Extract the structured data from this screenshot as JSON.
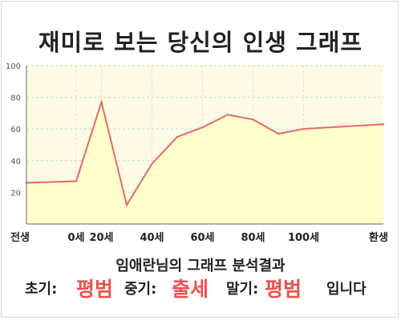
{
  "title": "재미로 보는 당신의 인생 그래프",
  "chart_data": {
    "type": "area",
    "x_labels": [
      "전생",
      "0세",
      "20세",
      "40세",
      "60세",
      "80세",
      "100세",
      "환생"
    ],
    "x": [
      "전생",
      "0세",
      "20세",
      "30세",
      "40세",
      "50세",
      "60세",
      "70세",
      "80세",
      "90세",
      "100세",
      "환생"
    ],
    "values": [
      26,
      27,
      77,
      12,
      38,
      55,
      61,
      69,
      66,
      57,
      60,
      63
    ],
    "ylim": [
      0,
      100
    ],
    "y_ticks": [
      20,
      40,
      60,
      80,
      100
    ],
    "grid": true,
    "line_color": "#e36b6b",
    "fill_color": "#ffffcc",
    "plot_background": "#fdfbe6"
  },
  "summary": "임애란님의 그래프 분석결과",
  "result": {
    "early_label": "초기:",
    "early_value": "평범",
    "middle_label": "중기:",
    "middle_value": "출세",
    "late_label": "말기:",
    "late_value": "평범",
    "ending": "입니다"
  }
}
